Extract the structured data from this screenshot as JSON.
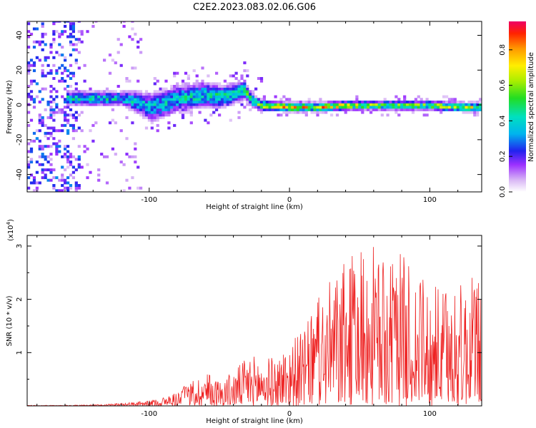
{
  "title": "C2E2.2023.083.02.06.G06",
  "chart_data": [
    {
      "type": "heatmap",
      "xlabel": "Height of straight line (km)",
      "ylabel": "Frequency (Hz)",
      "xlim": [
        -187,
        137
      ],
      "ylim": [
        -50,
        48
      ],
      "x_ticks": [
        -100,
        0,
        100
      ],
      "y_ticks": [
        -40,
        -20,
        0,
        20,
        40
      ],
      "colorbar": {
        "label": "Normalized spectral amplitude",
        "range": [
          0,
          0.96
        ],
        "ticks": [
          0.0,
          0.2,
          0.4,
          0.6,
          0.8
        ]
      },
      "ridge": {
        "description_points": [
          [
            -160,
            3
          ],
          [
            -140,
            3
          ],
          [
            -120,
            3
          ],
          [
            -110,
            1
          ],
          [
            -100,
            -2
          ],
          [
            -90,
            0
          ],
          [
            -80,
            3
          ],
          [
            -70,
            4
          ],
          [
            -60,
            5
          ],
          [
            -50,
            4
          ],
          [
            -40,
            6
          ],
          [
            -33,
            8
          ],
          [
            -28,
            2
          ],
          [
            -20,
            -1
          ],
          [
            0,
            -2
          ],
          [
            20,
            -2
          ],
          [
            40,
            -1
          ],
          [
            60,
            -1
          ],
          [
            80,
            -1
          ],
          [
            100,
            -1
          ],
          [
            120,
            -2
          ],
          [
            137,
            -2
          ]
        ],
        "amplitude_points": [
          [
            -160,
            0.45
          ],
          [
            -130,
            0.45
          ],
          [
            -100,
            0.4
          ],
          [
            -70,
            0.45
          ],
          [
            -40,
            0.5
          ],
          [
            -25,
            0.65
          ],
          [
            0,
            0.85
          ],
          [
            30,
            0.8
          ],
          [
            60,
            0.65
          ],
          [
            90,
            0.65
          ],
          [
            120,
            0.7
          ],
          [
            137,
            0.75
          ]
        ],
        "width_points": [
          [
            -160,
            4
          ],
          [
            -120,
            4
          ],
          [
            -100,
            8
          ],
          [
            -60,
            7
          ],
          [
            -33,
            5
          ],
          [
            -25,
            3
          ],
          [
            0,
            2.5
          ],
          [
            137,
            2.5
          ]
        ]
      }
    },
    {
      "type": "line",
      "xlabel": "Height of straight line (km)",
      "ylabel": "SNR (10 * v/v)",
      "y_multiplier": "(x10",
      "y_multiplier_exp": "4",
      "y_multiplier_close": ")",
      "xlim": [
        -187,
        137
      ],
      "ylim": [
        0,
        3.2
      ],
      "x_ticks": [
        -100,
        0,
        100
      ],
      "y_ticks": [
        1,
        2,
        3
      ],
      "color": "#ee2222",
      "envelope": [
        [
          -187,
          0.01
        ],
        [
          -150,
          0.015
        ],
        [
          -130,
          0.03
        ],
        [
          -115,
          0.06
        ],
        [
          -100,
          0.1
        ],
        [
          -85,
          0.2
        ],
        [
          -70,
          0.45
        ],
        [
          -60,
          0.65
        ],
        [
          -50,
          0.5
        ],
        [
          -40,
          0.65
        ],
        [
          -30,
          0.95
        ],
        [
          -20,
          0.95
        ],
        [
          -10,
          0.9
        ],
        [
          0,
          1.25
        ],
        [
          10,
          1.4
        ],
        [
          20,
          2.0
        ],
        [
          30,
          2.4
        ],
        [
          40,
          2.7
        ],
        [
          50,
          3.0
        ],
        [
          60,
          3.0
        ],
        [
          70,
          2.6
        ],
        [
          80,
          2.9
        ],
        [
          90,
          2.5
        ],
        [
          100,
          2.3
        ],
        [
          110,
          2.2
        ],
        [
          120,
          2.3
        ],
        [
          137,
          2.5
        ]
      ]
    }
  ]
}
